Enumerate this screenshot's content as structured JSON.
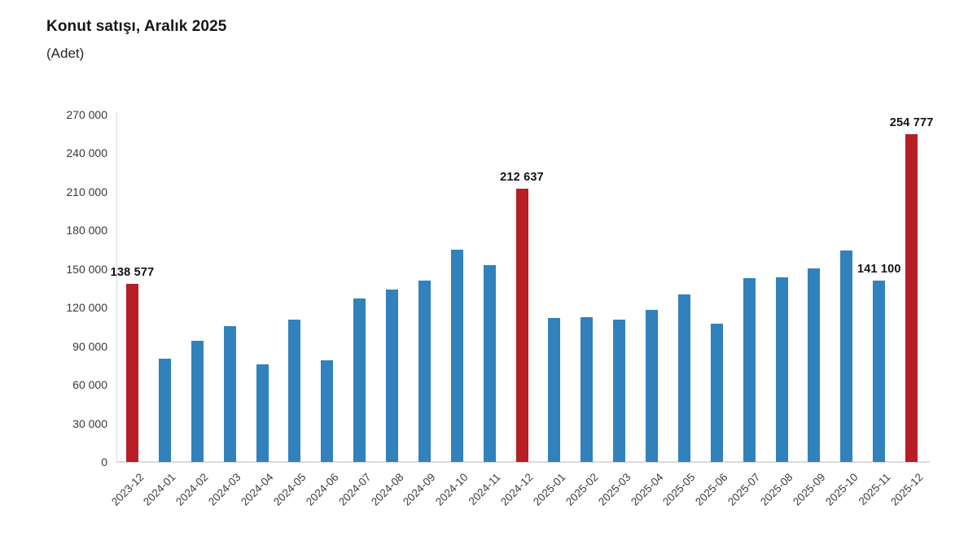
{
  "header": {
    "title": "Konut satışı, Aralık 2025",
    "subtitle": "(Adet)"
  },
  "chart_data": {
    "type": "bar",
    "title": "Konut satışı, Aralık 2025",
    "unit_label": "(Adet)",
    "xlabel": "",
    "ylabel": "",
    "ylim": [
      0,
      270000
    ],
    "grid": "off",
    "legend": "none",
    "y_ticks": [
      {
        "value": 0,
        "label": "0"
      },
      {
        "value": 30000,
        "label": "30 000"
      },
      {
        "value": 60000,
        "label": "60 000"
      },
      {
        "value": 90000,
        "label": "90 000"
      },
      {
        "value": 120000,
        "label": "120 000"
      },
      {
        "value": 150000,
        "label": "150 000"
      },
      {
        "value": 180000,
        "label": "180 000"
      },
      {
        "value": 210000,
        "label": "210 000"
      },
      {
        "value": 240000,
        "label": "240 000"
      },
      {
        "value": 270000,
        "label": "270 000"
      }
    ],
    "categories": [
      "2023-12",
      "2024-01",
      "2024-02",
      "2024-03",
      "2024-04",
      "2024-05",
      "2024-06",
      "2024-07",
      "2024-08",
      "2024-09",
      "2024-10",
      "2024-11",
      "2024-12",
      "2025-01",
      "2025-02",
      "2025-03",
      "2025-04",
      "2025-05",
      "2025-06",
      "2025-07",
      "2025-08",
      "2025-09",
      "2025-10",
      "2025-11",
      "2025-12"
    ],
    "values": [
      138577,
      80308,
      93902,
      105476,
      75569,
      110588,
      79313,
      127088,
      134155,
      140919,
      165138,
      153014,
      212637,
      112173,
      112818,
      110795,
      118359,
      130025,
      107723,
      142858,
      143319,
      150738,
      164306,
      141100,
      254777
    ],
    "highlighted_indices": [
      0,
      12,
      24
    ],
    "data_labels": [
      {
        "index": 0,
        "text": "138 577"
      },
      {
        "index": 12,
        "text": "212 637"
      },
      {
        "index": 23,
        "text": "141 100"
      },
      {
        "index": 24,
        "text": "254 777"
      }
    ],
    "colors": {
      "bar": "#3181bc",
      "highlight": "#b71e25",
      "axis_line": "#dbdbdb",
      "tick_text": "#35393d",
      "label_text": "#101215",
      "title_text": "#15181c",
      "background": "#ffffff"
    }
  }
}
